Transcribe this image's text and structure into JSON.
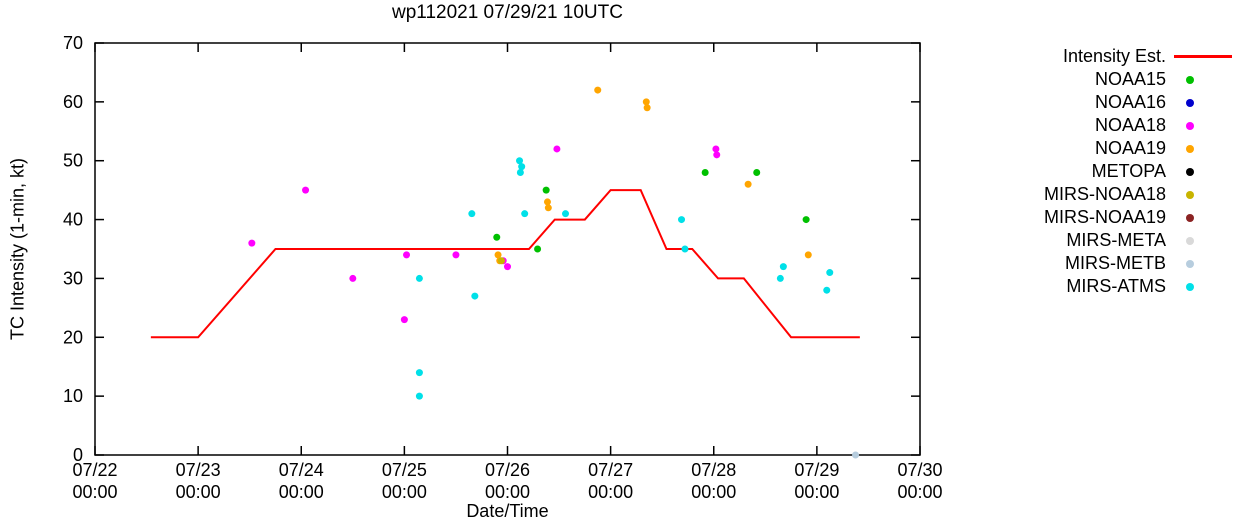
{
  "chart": {
    "title": "wp112021 07/29/21 10UTC",
    "xlabel": "Date/Time",
    "ylabel": "TC Intensity (1-min, kt)"
  },
  "chart_data": {
    "type": "scatter",
    "title": "wp112021 07/29/21 10UTC",
    "xlabel": "Date/Time",
    "ylabel": "TC Intensity (1-min, kt)",
    "x_unit": "hours since 07/22 00:00",
    "xlim": [
      0,
      192
    ],
    "ylim": [
      0,
      70
    ],
    "grid": false,
    "legend_position": "right",
    "y_ticks": [
      0,
      10,
      20,
      30,
      40,
      50,
      60,
      70
    ],
    "x_ticks": [
      {
        "hours": 0,
        "label_line1": "07/22",
        "label_line2": "00:00"
      },
      {
        "hours": 24,
        "label_line1": "07/23",
        "label_line2": "00:00"
      },
      {
        "hours": 48,
        "label_line1": "07/24",
        "label_line2": "00:00"
      },
      {
        "hours": 72,
        "label_line1": "07/25",
        "label_line2": "00:00"
      },
      {
        "hours": 96,
        "label_line1": "07/26",
        "label_line2": "00:00"
      },
      {
        "hours": 120,
        "label_line1": "07/27",
        "label_line2": "00:00"
      },
      {
        "hours": 144,
        "label_line1": "07/28",
        "label_line2": "00:00"
      },
      {
        "hours": 168,
        "label_line1": "07/29",
        "label_line2": "00:00"
      },
      {
        "hours": 192,
        "label_line1": "07/30",
        "label_line2": "00:00"
      }
    ],
    "intensity_line": {
      "name": "Intensity Est.",
      "color": "#ff0000",
      "points": [
        [
          13,
          20
        ],
        [
          24,
          20
        ],
        [
          42,
          35
        ],
        [
          101,
          35
        ],
        [
          107,
          40
        ],
        [
          114,
          40
        ],
        [
          120,
          45
        ],
        [
          127,
          45
        ],
        [
          133,
          35
        ],
        [
          139,
          35
        ],
        [
          145,
          30
        ],
        [
          151,
          30
        ],
        [
          162,
          20
        ],
        [
          178,
          20
        ]
      ]
    },
    "series": [
      {
        "name": "NOAA15",
        "color": "#00c000",
        "points": [
          [
            93.5,
            37
          ],
          [
            103,
            35
          ],
          [
            105,
            45
          ],
          [
            142,
            48
          ],
          [
            154,
            48
          ],
          [
            165.5,
            40
          ]
        ]
      },
      {
        "name": "NOAA16",
        "color": "#0000cd",
        "points": []
      },
      {
        "name": "NOAA18",
        "color": "#ff00ff",
        "points": [
          [
            36.5,
            36
          ],
          [
            49,
            45
          ],
          [
            60,
            30
          ],
          [
            72,
            23
          ],
          [
            72.5,
            34
          ],
          [
            84,
            34
          ],
          [
            95,
            33
          ],
          [
            96,
            32
          ],
          [
            107.5,
            52
          ],
          [
            144.5,
            52
          ],
          [
            144.7,
            51
          ]
        ]
      },
      {
        "name": "NOAA19",
        "color": "#ffa500",
        "points": [
          [
            93.8,
            34
          ],
          [
            94.2,
            33
          ],
          [
            105.3,
            43
          ],
          [
            105.5,
            42
          ],
          [
            117,
            62
          ],
          [
            128.3,
            60
          ],
          [
            128.5,
            59
          ],
          [
            152,
            46
          ],
          [
            166,
            34
          ]
        ]
      },
      {
        "name": "METOPA",
        "color": "#000000",
        "points": []
      },
      {
        "name": "MIRS-NOAA18",
        "color": "#c8b400",
        "points": [
          [
            94.6,
            33
          ]
        ]
      },
      {
        "name": "MIRS-NOAA19",
        "color": "#8b2323",
        "points": []
      },
      {
        "name": "MIRS-META",
        "color": "#d9d9d9",
        "points": []
      },
      {
        "name": "MIRS-METB",
        "color": "#b7cdde",
        "points": [
          [
            177,
            0
          ]
        ]
      },
      {
        "name": "MIRS-ATMS",
        "color": "#00e0e8",
        "points": [
          [
            75.5,
            30
          ],
          [
            75.5,
            14
          ],
          [
            75.5,
            10
          ],
          [
            87.7,
            41
          ],
          [
            88.4,
            27
          ],
          [
            98.8,
            50
          ],
          [
            99.3,
            49
          ],
          [
            99,
            48
          ],
          [
            100,
            41
          ],
          [
            109.5,
            41
          ],
          [
            136.5,
            40
          ],
          [
            137.3,
            35
          ],
          [
            159.5,
            30
          ],
          [
            160.2,
            32
          ],
          [
            171,
            31
          ],
          [
            170.3,
            28
          ]
        ]
      }
    ]
  }
}
